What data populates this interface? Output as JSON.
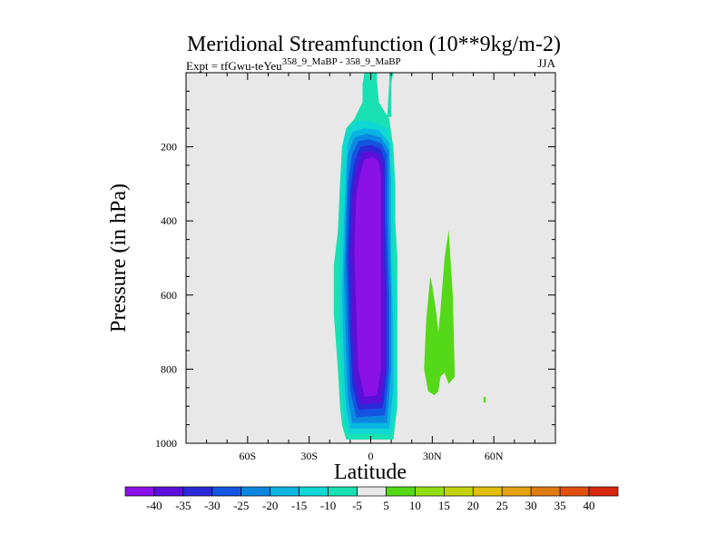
{
  "chart_data": {
    "type": "contour",
    "title": "Meridional Streamfunction (10**9kg/m-2)",
    "subtitle_left": "Expt = tfGwu-teYeu",
    "subtitle_left_superscript": "358_9_MaBP - 358_9_MaBP",
    "subtitle_right": "JJA",
    "xlabel": "Latitude",
    "ylabel": "Pressure (in hPa)",
    "x_range": [
      -90,
      90
    ],
    "y_range": [
      1000,
      0
    ],
    "x_ticks": [
      {
        "value": -60,
        "label": "60S"
      },
      {
        "value": -30,
        "label": "30S"
      },
      {
        "value": 0,
        "label": "0"
      },
      {
        "value": 30,
        "label": "30N"
      },
      {
        "value": 60,
        "label": "60N"
      }
    ],
    "y_ticks": [
      {
        "value": 200,
        "label": "200"
      },
      {
        "value": 400,
        "label": "400"
      },
      {
        "value": 600,
        "label": "600"
      },
      {
        "value": 800,
        "label": "800"
      },
      {
        "value": 1000,
        "label": "1000"
      }
    ],
    "y_minor_step": 50,
    "x_minor_step": 10,
    "background_color": "#e8e8e8",
    "contour_levels": [
      -40,
      -35,
      -30,
      -25,
      -20,
      -15,
      -10,
      -5,
      5,
      10,
      15,
      20,
      25,
      30,
      35,
      40
    ],
    "colorbar_labels": [
      "-40",
      "-35",
      "-30",
      "-25",
      "-20",
      "-15",
      "-10",
      "-5",
      "5",
      "10",
      "15",
      "20",
      "25",
      "30",
      "35",
      "40"
    ],
    "colorbar_colors": [
      "#8a12e8",
      "#5b10d9",
      "#2a2ad9",
      "#1455e0",
      "#0a88e0",
      "#0ab4e0",
      "#10d6d4",
      "#18e0b2",
      "#e8e8e8",
      "#55d818",
      "#92de10",
      "#c2d408",
      "#e0c008",
      "#e5a210",
      "#e07a10",
      "#e05010",
      "#d82810"
    ],
    "regions": [
      {
        "name": "negative-cell-outer",
        "level": "-5",
        "color": "#18e0b2",
        "points": [
          [
            -4,
            80
          ],
          [
            -4,
            30
          ],
          [
            -3,
            0
          ],
          [
            3,
            0
          ],
          [
            3,
            20
          ],
          [
            4,
            80
          ],
          [
            9,
            125
          ],
          [
            11,
            200
          ],
          [
            12,
            300
          ],
          [
            12,
            400
          ],
          [
            13,
            500
          ],
          [
            13,
            600
          ],
          [
            13,
            700
          ],
          [
            13,
            800
          ],
          [
            13,
            900
          ],
          [
            11,
            990
          ],
          [
            -12,
            990
          ],
          [
            -14,
            950
          ],
          [
            -15,
            900
          ],
          [
            -16,
            800
          ],
          [
            -18,
            650
          ],
          [
            -18,
            520
          ],
          [
            -16,
            430
          ],
          [
            -15,
            300
          ],
          [
            -14,
            200
          ],
          [
            -12,
            150
          ],
          [
            -8,
            125
          ]
        ]
      },
      {
        "name": "negative-cell-10",
        "level": "-10",
        "color": "#10d6d4",
        "points": [
          [
            -10,
            145
          ],
          [
            -6,
            130
          ],
          [
            0,
            130
          ],
          [
            8,
            150
          ],
          [
            10,
            200
          ],
          [
            11,
            300
          ],
          [
            11,
            400
          ],
          [
            11,
            500
          ],
          [
            12,
            600
          ],
          [
            12,
            700
          ],
          [
            12,
            800
          ],
          [
            12,
            900
          ],
          [
            10,
            975
          ],
          [
            -11,
            975
          ],
          [
            -13,
            930
          ],
          [
            -14,
            850
          ],
          [
            -15,
            700
          ],
          [
            -15,
            500
          ],
          [
            -14,
            300
          ],
          [
            -13,
            180
          ]
        ]
      },
      {
        "name": "negative-cell-15",
        "level": "-15",
        "color": "#0ab4e0",
        "points": [
          [
            -9,
            160
          ],
          [
            -3,
            150
          ],
          [
            4,
            155
          ],
          [
            9,
            190
          ],
          [
            10,
            300
          ],
          [
            10,
            500
          ],
          [
            11,
            700
          ],
          [
            11,
            850
          ],
          [
            9,
            960
          ],
          [
            -10,
            960
          ],
          [
            -12,
            900
          ],
          [
            -13,
            800
          ],
          [
            -14,
            600
          ],
          [
            -13,
            400
          ],
          [
            -12,
            250
          ],
          [
            -11,
            190
          ]
        ]
      },
      {
        "name": "negative-cell-20",
        "level": "-20",
        "color": "#0a88e0",
        "points": [
          [
            -8,
            175
          ],
          [
            -2,
            165
          ],
          [
            5,
            175
          ],
          [
            9,
            210
          ],
          [
            9,
            400
          ],
          [
            10,
            600
          ],
          [
            10,
            800
          ],
          [
            8,
            945
          ],
          [
            -9,
            945
          ],
          [
            -11,
            880
          ],
          [
            -12,
            750
          ],
          [
            -13,
            550
          ],
          [
            -12,
            350
          ],
          [
            -11,
            220
          ]
        ]
      },
      {
        "name": "negative-cell-25",
        "level": "-25",
        "color": "#1455e0",
        "points": [
          [
            -6,
            185
          ],
          [
            -1,
            180
          ],
          [
            5,
            190
          ],
          [
            8,
            220
          ],
          [
            8,
            400
          ],
          [
            9,
            600
          ],
          [
            9,
            800
          ],
          [
            7,
            925
          ],
          [
            -7,
            930
          ],
          [
            -10,
            860
          ],
          [
            -11,
            700
          ],
          [
            -12,
            500
          ],
          [
            -11,
            300
          ],
          [
            -9,
            220
          ]
        ]
      },
      {
        "name": "negative-cell-30",
        "level": "-30",
        "color": "#2a2ad9",
        "points": [
          [
            -5,
            200
          ],
          [
            0,
            195
          ],
          [
            5,
            205
          ],
          [
            7,
            240
          ],
          [
            7,
            400
          ],
          [
            8,
            600
          ],
          [
            8,
            800
          ],
          [
            6,
            905
          ],
          [
            -6,
            910
          ],
          [
            -9,
            840
          ],
          [
            -10,
            700
          ],
          [
            -11,
            500
          ],
          [
            -10,
            320
          ],
          [
            -8,
            240
          ]
        ]
      },
      {
        "name": "negative-cell-35",
        "level": "-35",
        "color": "#5b10d9",
        "points": [
          [
            -4,
            215
          ],
          [
            0,
            210
          ],
          [
            4,
            220
          ],
          [
            6,
            250
          ],
          [
            6,
            400
          ],
          [
            7,
            600
          ],
          [
            7,
            800
          ],
          [
            5,
            890
          ],
          [
            -5,
            895
          ],
          [
            -8,
            820
          ],
          [
            -9,
            700
          ],
          [
            -10,
            500
          ],
          [
            -9,
            330
          ],
          [
            -7,
            260
          ]
        ]
      },
      {
        "name": "negative-cell-40",
        "level": "-40",
        "color": "#8a12e8",
        "points": [
          [
            -3,
            235
          ],
          [
            1,
            228
          ],
          [
            4,
            240
          ],
          [
            5,
            280
          ],
          [
            5,
            500
          ],
          [
            5,
            700
          ],
          [
            5,
            800
          ],
          [
            3,
            870
          ],
          [
            -3,
            875
          ],
          [
            -6,
            800
          ],
          [
            -7,
            650
          ],
          [
            -8,
            480
          ],
          [
            -7,
            330
          ],
          [
            -5,
            270
          ]
        ]
      },
      {
        "name": "positive-cell",
        "level": "10",
        "color": "#55d818",
        "points": [
          [
            27,
            670
          ],
          [
            29,
            550
          ],
          [
            30,
            575
          ],
          [
            32,
            650
          ],
          [
            33,
            700
          ],
          [
            34,
            640
          ],
          [
            36,
            500
          ],
          [
            38,
            425
          ],
          [
            40,
            600
          ],
          [
            41,
            820
          ],
          [
            38,
            840
          ],
          [
            36,
            810
          ],
          [
            34,
            820
          ],
          [
            33,
            860
          ],
          [
            31,
            870
          ],
          [
            28,
            860
          ],
          [
            26,
            800
          ]
        ]
      },
      {
        "name": "positive-dot",
        "level": "10",
        "color": "#55d818",
        "points": [
          [
            55,
            875
          ],
          [
            56,
            875
          ],
          [
            56,
            890
          ],
          [
            55,
            890
          ]
        ]
      },
      {
        "name": "top-spike",
        "level": "-5",
        "color": "#18e0b2",
        "points": [
          [
            9,
            0
          ],
          [
            11,
            0
          ],
          [
            10,
            30
          ],
          [
            10,
            120
          ],
          [
            8,
            120
          ],
          [
            9,
            30
          ]
        ]
      }
    ]
  }
}
